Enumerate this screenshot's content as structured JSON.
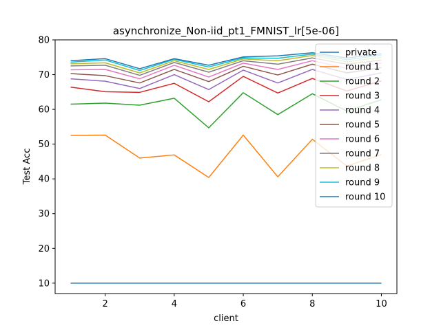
{
  "chart_data": {
    "type": "line",
    "title": "asynchronize_Non-iid_pt1_FMNIST_lr[5e-06]",
    "xlabel": "client",
    "ylabel": "Test Acc",
    "xlim": [
      0.55,
      10.45
    ],
    "ylim": [
      7,
      80
    ],
    "xticks": [
      2,
      4,
      6,
      8,
      10
    ],
    "yticks": [
      10,
      20,
      30,
      40,
      50,
      60,
      70,
      80
    ],
    "grid": false,
    "legend_position": "top-right",
    "x": [
      1,
      2,
      3,
      4,
      5,
      6,
      7,
      8,
      9,
      10
    ],
    "series": [
      {
        "name": "private",
        "color": "#1f77b4",
        "values": [
          10.0,
          10.0,
          10.0,
          10.0,
          10.0,
          10.0,
          10.0,
          10.0,
          10.0,
          10.0
        ]
      },
      {
        "name": "round 1",
        "color": "#ff7f0e",
        "values": [
          52.5,
          52.6,
          46.0,
          46.9,
          40.4,
          52.6,
          40.6,
          51.4,
          43.7,
          47.0
        ]
      },
      {
        "name": "round 2",
        "color": "#2ca02c",
        "values": [
          61.5,
          61.8,
          61.2,
          63.2,
          54.7,
          64.8,
          58.5,
          64.5,
          59.5,
          62.8
        ]
      },
      {
        "name": "round 3",
        "color": "#d62728",
        "values": [
          66.4,
          65.1,
          64.9,
          67.5,
          62.2,
          69.5,
          64.7,
          68.9,
          65.3,
          68.2
        ]
      },
      {
        "name": "round 4",
        "color": "#9467bd",
        "values": [
          68.8,
          68.1,
          66.0,
          70.0,
          65.7,
          71.3,
          67.6,
          71.5,
          68.6,
          70.5
        ]
      },
      {
        "name": "round 5",
        "color": "#8c564b",
        "values": [
          70.3,
          69.7,
          67.6,
          71.5,
          68.0,
          72.4,
          69.9,
          73.0,
          70.5,
          72.0
        ]
      },
      {
        "name": "round 6",
        "color": "#e377c2",
        "values": [
          71.4,
          71.5,
          68.8,
          72.7,
          69.3,
          73.3,
          71.5,
          74.0,
          71.8,
          73.3
        ]
      },
      {
        "name": "round 7",
        "color": "#7f7f7f",
        "values": [
          72.5,
          72.7,
          69.8,
          73.5,
          70.7,
          74.0,
          73.0,
          74.8,
          73.0,
          74.2
        ]
      },
      {
        "name": "round 8",
        "color": "#bcbd22",
        "values": [
          73.1,
          73.4,
          70.5,
          74.0,
          71.5,
          74.5,
          74.0,
          75.5,
          73.7,
          75.0
        ]
      },
      {
        "name": "round 9",
        "color": "#17becf",
        "values": [
          73.6,
          74.2,
          71.2,
          74.4,
          72.2,
          74.8,
          74.7,
          75.9,
          74.3,
          75.6
        ]
      },
      {
        "name": "round 10",
        "color": "#1f77b4",
        "values": [
          74.0,
          74.6,
          71.7,
          74.6,
          72.7,
          75.1,
          75.4,
          76.3,
          74.8,
          76.0
        ]
      }
    ]
  }
}
